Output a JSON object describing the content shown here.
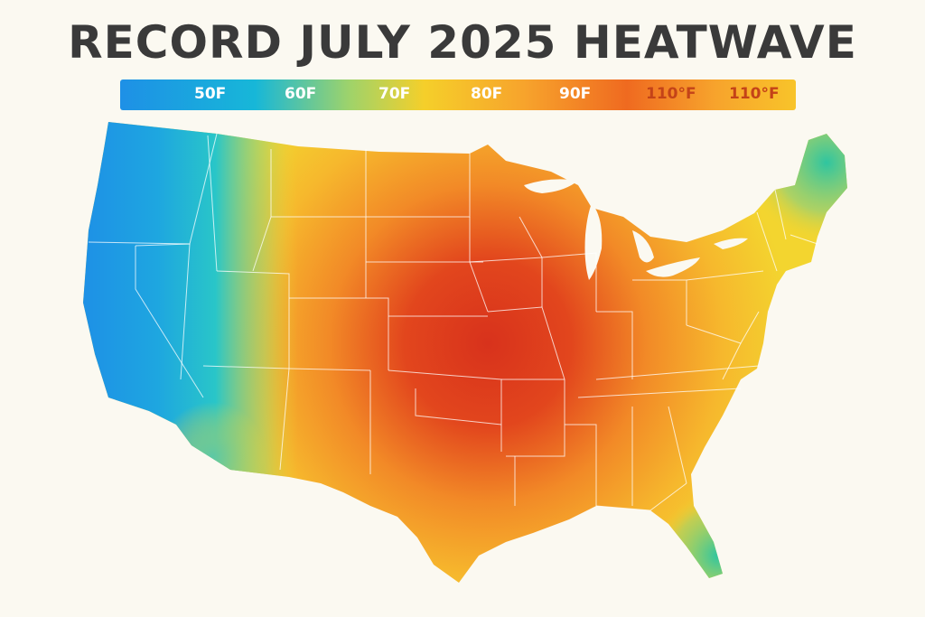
{
  "title": "RECORD JULY 2025 HEATWAVE",
  "legend": {
    "labels": [
      "50F",
      "60F",
      "70F",
      "80F",
      "90F",
      "110°F",
      "110°F"
    ],
    "colors": [
      "#1e90e6",
      "#17b7d8",
      "#f5cf2a",
      "#f7a32c",
      "#ef6a20",
      "#d8321c",
      "#f8c42a"
    ]
  },
  "map": {
    "region": "Contiguous United States",
    "hottest_region_color": "#d8321c",
    "coolest_region_color": "#1e90e6"
  }
}
